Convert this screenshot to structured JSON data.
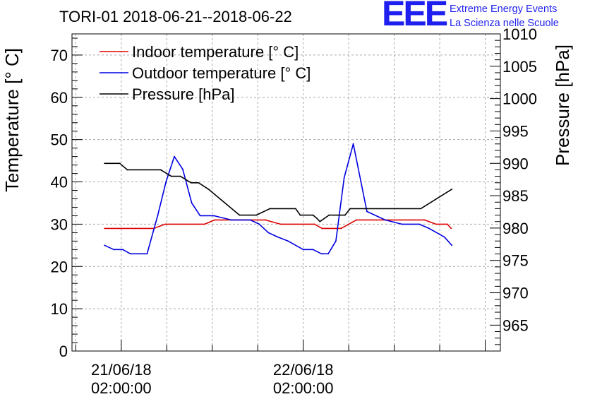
{
  "chart_data": {
    "type": "line",
    "title": "TORI-01 2018-06-21--2018-06-22",
    "ylabel": "Temperature [° C]",
    "y2label": "Pressure [hPa]",
    "ylim": [
      0,
      75
    ],
    "y2lim": [
      961,
      1010
    ],
    "xlim_hours": [
      -6.5,
      50
    ],
    "grid": true,
    "legend_position": "top-left",
    "yticks": [
      "0",
      "10",
      "20",
      "30",
      "40",
      "50",
      "60",
      "70"
    ],
    "y2ticks": [
      "965",
      "970",
      "975",
      "980",
      "985",
      "990",
      "995",
      "1000",
      "1005",
      "1010"
    ],
    "xticks": [
      {
        "hours": 0,
        "date": "21/06/18",
        "time": "02:00:00"
      },
      {
        "hours": 24,
        "date": "22/06/18",
        "time": "02:00:00"
      }
    ],
    "series": [
      {
        "name": "Indoor temperature [° C]",
        "axis": "left",
        "color": "#e00000",
        "x": [
          -2.2,
          4.3,
          5.8,
          11,
          12.3,
          19,
          21,
          25.5,
          26.5,
          29,
          31,
          40,
          41.5,
          43,
          43.5
        ],
        "values": [
          29,
          29,
          30,
          30,
          31,
          31,
          30,
          30,
          29,
          29,
          31,
          31,
          30,
          30,
          29
        ]
      },
      {
        "name": "Outdoor temperature [° C]",
        "axis": "left",
        "color": "#0000e0",
        "x": [
          -2.2,
          -1.0,
          0.2,
          1.2,
          3.4,
          4.8,
          5.9,
          7,
          8.1,
          9.3,
          10.4,
          12.2,
          14.5,
          17,
          18.2,
          19.4,
          20.6,
          22,
          24,
          25.3,
          26.4,
          27.3,
          28.3,
          29.4,
          30.6,
          32.4,
          34.8,
          37,
          39.3,
          40.6,
          42.6,
          43.6
        ],
        "values": [
          25,
          24,
          24,
          23,
          23,
          32,
          40,
          46,
          43,
          35,
          32,
          32,
          31,
          31,
          30,
          28,
          27,
          26,
          24,
          24,
          23,
          23,
          26,
          41,
          49,
          33,
          31,
          30,
          30,
          29,
          27,
          25
        ]
      },
      {
        "name": "Pressure [hPa]",
        "axis": "right",
        "color": "#000000",
        "x": [
          -2.2,
          -0.2,
          0.8,
          5.2,
          6.6,
          7.8,
          9.2,
          10.2,
          11.5,
          15.6,
          17.8,
          19.6,
          23,
          23.6,
          25.3,
          25.8,
          26.2,
          27.4,
          29.5,
          30.2,
          39.5,
          43.6
        ],
        "values": [
          990,
          990,
          989,
          989,
          988,
          988,
          987,
          987,
          986,
          982,
          982,
          983,
          983,
          982,
          982,
          981.5,
          981,
          982,
          982,
          983,
          983,
          986
        ]
      }
    ]
  },
  "logo": {
    "letters": "EEE",
    "line1": "Extreme Energy Events",
    "line2": "La Scienza nelle Scuole"
  }
}
